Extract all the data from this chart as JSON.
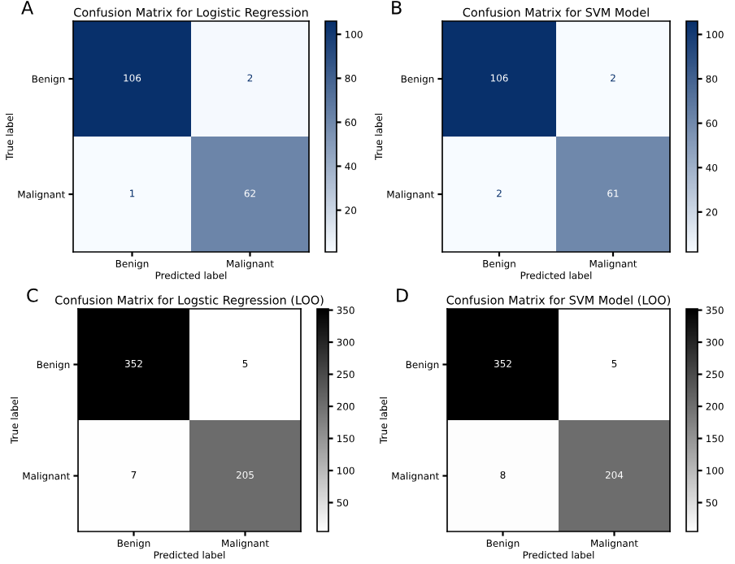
{
  "chart_data": [
    {
      "type": "heatmap",
      "title": "Confusion Matrix for Logistic Regression",
      "xlabel": "Predicted label",
      "ylabel": "True label",
      "annotations": [
        "A"
      ],
      "categories": [
        "Benign",
        "Malignant"
      ],
      "y_categories": [
        "Benign",
        "Malignant"
      ],
      "cells": [
        [
          106,
          2
        ],
        [
          1,
          62
        ]
      ],
      "data_labels": true,
      "clim": [
        1,
        106
      ],
      "cticks": [
        20,
        40,
        60,
        80,
        100
      ],
      "colors": [
        "#f7fbff",
        "#08306b"
      ]
    },
    {
      "type": "heatmap",
      "title": "Confusion Matrix for SVM Model",
      "xlabel": "Predicted label",
      "ylabel": "True label",
      "annotations": [
        "B"
      ],
      "categories": [
        "Benign",
        "Malignant"
      ],
      "y_categories": [
        "Benign",
        "Malignant"
      ],
      "cells": [
        [
          106,
          2
        ],
        [
          2,
          61
        ]
      ],
      "data_labels": true,
      "clim": [
        2,
        106
      ],
      "cticks": [
        20,
        40,
        60,
        80,
        100
      ],
      "colors": [
        "#f7fbff",
        "#08306b"
      ]
    },
    {
      "type": "heatmap",
      "title": "Confusion Matrix for Logstic Regression (LOO)",
      "xlabel": "Predicted label",
      "ylabel": "True label",
      "annotations": [
        "C"
      ],
      "categories": [
        "Benign",
        "Malignant"
      ],
      "y_categories": [
        "Benign",
        "Malignant"
      ],
      "cells": [
        [
          352,
          5
        ],
        [
          7,
          205
        ]
      ],
      "data_labels": true,
      "clim": [
        5,
        352
      ],
      "cticks": [
        50,
        100,
        150,
        200,
        250,
        300,
        350
      ],
      "colors": [
        "#ffffff",
        "#000000"
      ]
    },
    {
      "type": "heatmap",
      "title": "Confusion Matrix for SVM Model (LOO)",
      "xlabel": "Predicted label",
      "ylabel": "True label",
      "annotations": [
        "D"
      ],
      "categories": [
        "Benign",
        "Malignant"
      ],
      "y_categories": [
        "Benign",
        "Malignant"
      ],
      "cells": [
        [
          352,
          5
        ],
        [
          8,
          204
        ]
      ],
      "data_labels": true,
      "clim": [
        5,
        352
      ],
      "cticks": [
        50,
        100,
        150,
        200,
        250,
        300,
        350
      ],
      "colors": [
        "#ffffff",
        "#000000"
      ]
    }
  ]
}
